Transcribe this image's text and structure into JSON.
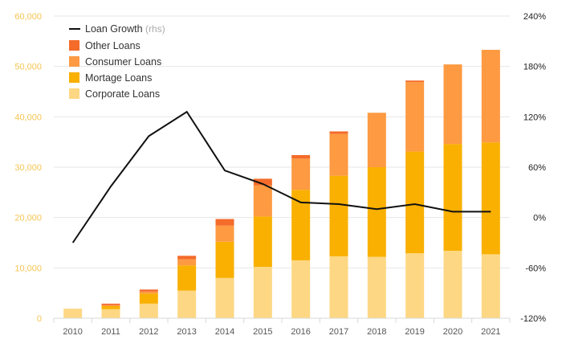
{
  "chart_data": {
    "type": "bar",
    "stacked": true,
    "title": "",
    "xlabel": "",
    "ylabel": "",
    "categories": [
      "2010",
      "2011",
      "2012",
      "2013",
      "2014",
      "2015",
      "2016",
      "2017",
      "2018",
      "2019",
      "2020",
      "2021"
    ],
    "series": [
      {
        "name": "Corporate Loans",
        "color": "#fdd783",
        "values": [
          1900,
          1800,
          2900,
          5500,
          8000,
          10200,
          11500,
          12300,
          12200,
          12900,
          13400,
          12700
        ]
      },
      {
        "name": "Mortage Loans",
        "color": "#f9b000",
        "values": [
          0,
          600,
          2000,
          5000,
          7200,
          10000,
          14000,
          16000,
          17800,
          20200,
          21200,
          22200
        ]
      },
      {
        "name": "Consumer Loans",
        "color": "#fd9a42",
        "values": [
          0,
          200,
          400,
          1200,
          3200,
          6200,
          6200,
          8300,
          10800,
          13800,
          15800,
          18400
        ]
      },
      {
        "name": "Other Loans",
        "color": "#f46b2a",
        "values": [
          0,
          300,
          400,
          700,
          1300,
          1300,
          700,
          500,
          0,
          300,
          0,
          0
        ]
      }
    ],
    "line_series": {
      "name": "Loan Growth",
      "suffix": "(rhs)",
      "color": "#111111",
      "values": [
        -30,
        37,
        97,
        126,
        56,
        40,
        18,
        16,
        10,
        16,
        7,
        7
      ]
    },
    "ylim_left": [
      0,
      60000
    ],
    "yticks_left": [
      "0",
      "10,000",
      "20,000",
      "30,000",
      "40,000",
      "50,000",
      "60,000"
    ],
    "ylim_right": [
      -120,
      240
    ],
    "yticks_right": [
      "-120%",
      "-60%",
      "0%",
      "60%",
      "120%",
      "180%",
      "240%"
    ],
    "legend_position": "top-left",
    "grid": "horizontal"
  }
}
